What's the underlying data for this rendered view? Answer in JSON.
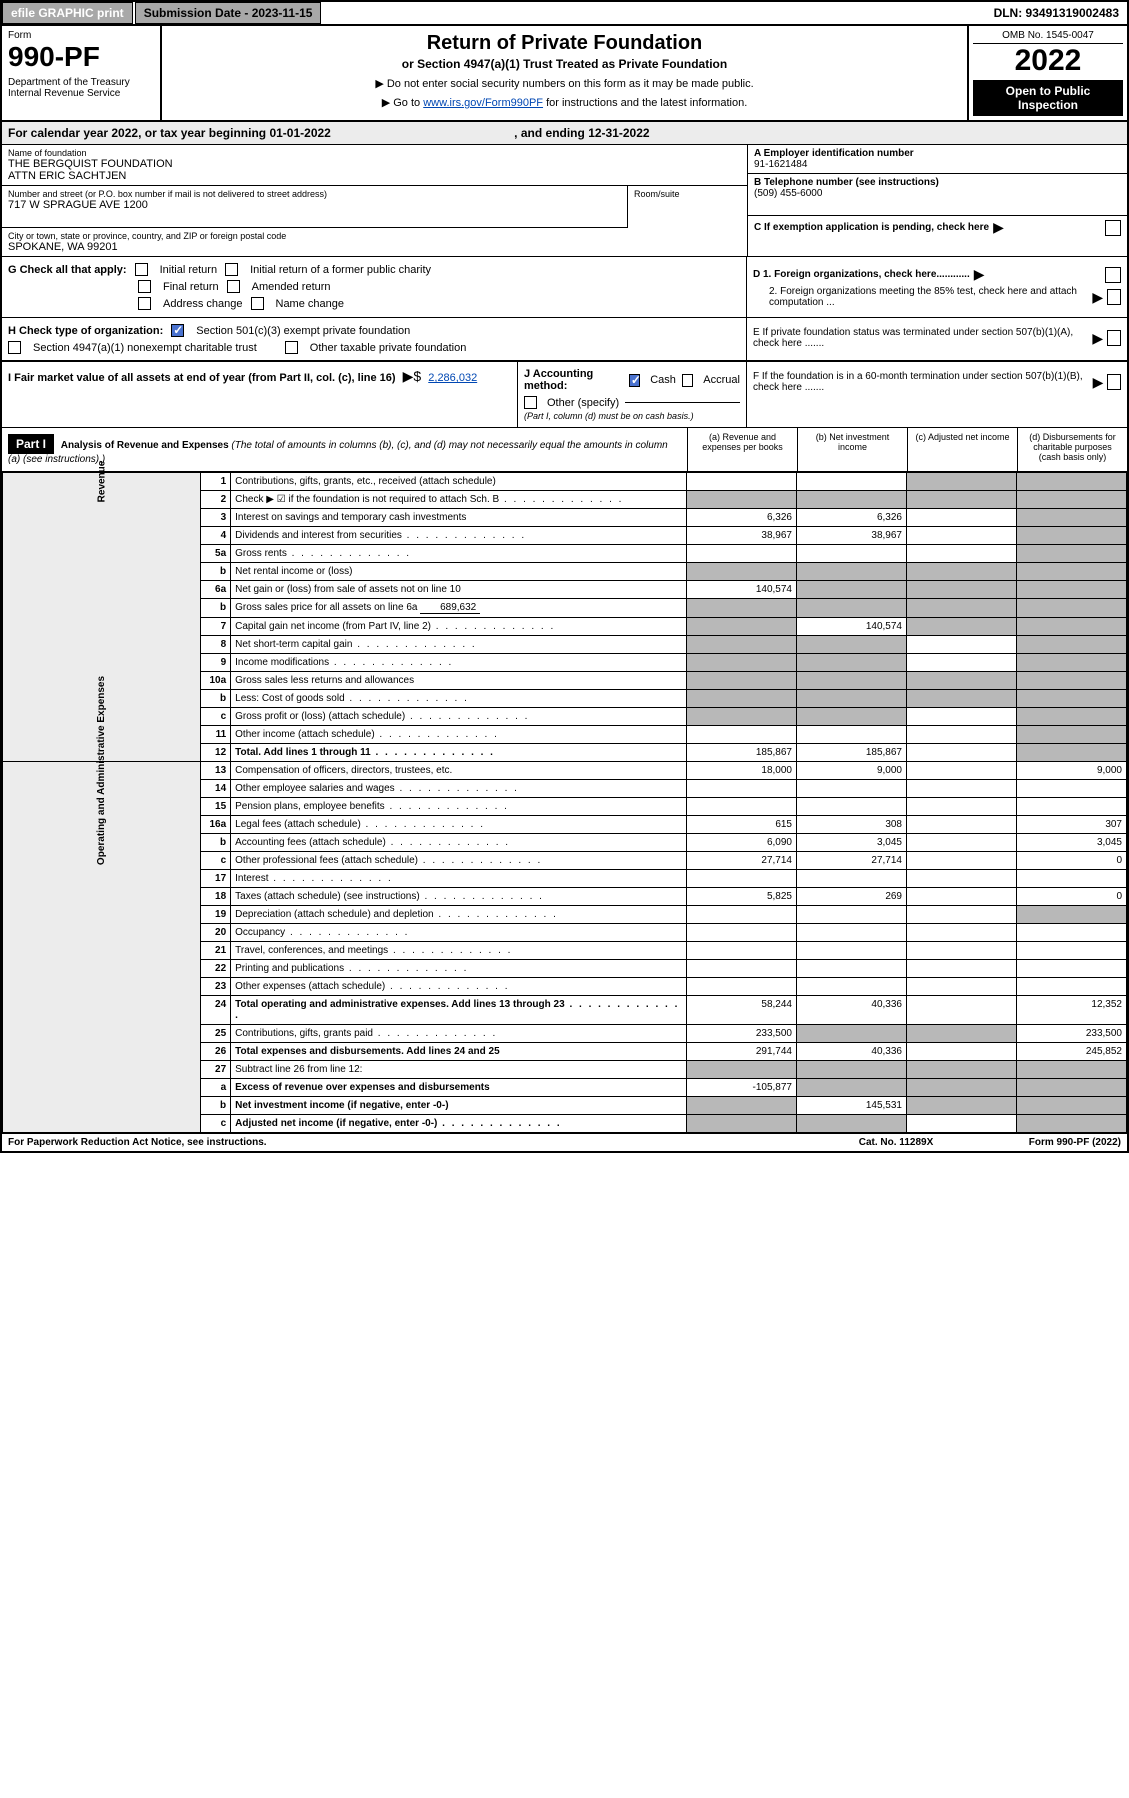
{
  "top_bar": {
    "efile": "efile GRAPHIC print",
    "submission_label": "Submission Date - 2023-11-15",
    "dln": "DLN: 93491319002483"
  },
  "header": {
    "form_label": "Form",
    "form_number": "990-PF",
    "dept": "Department of the Treasury\nInternal Revenue Service",
    "main_title": "Return of Private Foundation",
    "sub_title": "or Section 4947(a)(1) Trust Treated as Private Foundation",
    "instr1": "▶ Do not enter social security numbers on this form as it may be made public.",
    "instr2_prefix": "▶ Go to ",
    "instr2_link": "www.irs.gov/Form990PF",
    "instr2_suffix": " for instructions and the latest information.",
    "omb": "OMB No. 1545-0047",
    "year": "2022",
    "open_public": "Open to Public Inspection"
  },
  "calendar": {
    "text_prefix": "For calendar year 2022, or tax year beginning ",
    "begin": "01-01-2022",
    "text_mid": " , and ending ",
    "end": "12-31-2022"
  },
  "foundation": {
    "name_label": "Name of foundation",
    "name": "THE BERGQUIST FOUNDATION\nATTN ERIC SACHTJEN",
    "addr_label": "Number and street (or P.O. box number if mail is not delivered to street address)",
    "addr": "717 W SPRAGUE AVE 1200",
    "room_label": "Room/suite",
    "city_label": "City or town, state or province, country, and ZIP or foreign postal code",
    "city": "SPOKANE, WA  99201",
    "ein_label": "A Employer identification number",
    "ein": "91-1621484",
    "phone_label": "B Telephone number (see instructions)",
    "phone": "(509) 455-6000",
    "c_label": "C If exemption application is pending, check here",
    "d1_label": "D 1. Foreign organizations, check here............",
    "d2_label": "2. Foreign organizations meeting the 85% test, check here and attach computation ...",
    "e_label": "E  If private foundation status was terminated under section 507(b)(1)(A), check here .......",
    "f_label": "F  If the foundation is in a 60-month termination under section 507(b)(1)(B), check here ......."
  },
  "g_section": {
    "label": "G Check all that apply:",
    "opts": [
      "Initial return",
      "Initial return of a former public charity",
      "Final return",
      "Amended return",
      "Address change",
      "Name change"
    ]
  },
  "h_section": {
    "label": "H Check type of organization:",
    "opt1": "Section 501(c)(3) exempt private foundation",
    "opt2": "Section 4947(a)(1) nonexempt charitable trust",
    "opt3": "Other taxable private foundation"
  },
  "i_section": {
    "label": "I Fair market value of all assets at end of year (from Part II, col. (c), line 16)",
    "value": "2,286,032"
  },
  "j_section": {
    "label": "J Accounting method:",
    "opts": [
      "Cash",
      "Accrual",
      "Other (specify)"
    ],
    "note": "(Part I, column (d) must be on cash basis.)"
  },
  "part1": {
    "header": "Part I",
    "title": "Analysis of Revenue and Expenses",
    "note": "(The total of amounts in columns (b), (c), and (d) may not necessarily equal the amounts in column (a) (see instructions).)",
    "col_a": "(a) Revenue and expenses per books",
    "col_b": "(b) Net investment income",
    "col_c": "(c) Adjusted net income",
    "col_d": "(d) Disbursements for charitable purposes (cash basis only)"
  },
  "side_labels": {
    "revenue": "Revenue",
    "expenses": "Operating and Administrative Expenses"
  },
  "lines": [
    {
      "n": "1",
      "label": "Contributions, gifts, grants, etc., received (attach schedule)",
      "a": "",
      "b": "",
      "c": "sh",
      "d": "sh"
    },
    {
      "n": "2",
      "label": "Check ▶ ☑ if the foundation is not required to attach Sch. B",
      "a": "sh",
      "b": "sh",
      "c": "sh",
      "d": "sh",
      "dots": true
    },
    {
      "n": "3",
      "label": "Interest on savings and temporary cash investments",
      "a": "6,326",
      "b": "6,326",
      "c": "",
      "d": "sh"
    },
    {
      "n": "4",
      "label": "Dividends and interest from securities",
      "a": "38,967",
      "b": "38,967",
      "c": "",
      "d": "sh",
      "dots": true
    },
    {
      "n": "5a",
      "label": "Gross rents",
      "a": "",
      "b": "",
      "c": "",
      "d": "sh",
      "dots": true
    },
    {
      "n": "b",
      "label": "Net rental income or (loss)",
      "a": "sh",
      "b": "sh",
      "c": "sh",
      "d": "sh",
      "inset": true
    },
    {
      "n": "6a",
      "label": "Net gain or (loss) from sale of assets not on line 10",
      "a": "140,574",
      "b": "sh",
      "c": "sh",
      "d": "sh"
    },
    {
      "n": "b",
      "label": "Gross sales price for all assets on line 6a",
      "a": "sh",
      "b": "sh",
      "c": "sh",
      "d": "sh",
      "inset": true,
      "inline_val": "689,632"
    },
    {
      "n": "7",
      "label": "Capital gain net income (from Part IV, line 2)",
      "a": "sh",
      "b": "140,574",
      "c": "sh",
      "d": "sh",
      "dots": true
    },
    {
      "n": "8",
      "label": "Net short-term capital gain",
      "a": "sh",
      "b": "sh",
      "c": "",
      "d": "sh",
      "dots": true
    },
    {
      "n": "9",
      "label": "Income modifications",
      "a": "sh",
      "b": "sh",
      "c": "",
      "d": "sh",
      "dots": true
    },
    {
      "n": "10a",
      "label": "Gross sales less returns and allowances",
      "a": "sh",
      "b": "sh",
      "c": "sh",
      "d": "sh",
      "inset": true
    },
    {
      "n": "b",
      "label": "Less: Cost of goods sold",
      "a": "sh",
      "b": "sh",
      "c": "sh",
      "d": "sh",
      "inset": true,
      "dots": true
    },
    {
      "n": "c",
      "label": "Gross profit or (loss) (attach schedule)",
      "a": "sh",
      "b": "sh",
      "c": "",
      "d": "sh",
      "dots": true
    },
    {
      "n": "11",
      "label": "Other income (attach schedule)",
      "a": "",
      "b": "",
      "c": "",
      "d": "sh",
      "dots": true
    },
    {
      "n": "12",
      "label": "Total. Add lines 1 through 11",
      "a": "185,867",
      "b": "185,867",
      "c": "",
      "d": "sh",
      "bold": true,
      "dots": true
    },
    {
      "n": "13",
      "label": "Compensation of officers, directors, trustees, etc.",
      "a": "18,000",
      "b": "9,000",
      "c": "",
      "d": "9,000"
    },
    {
      "n": "14",
      "label": "Other employee salaries and wages",
      "a": "",
      "b": "",
      "c": "",
      "d": "",
      "dots": true
    },
    {
      "n": "15",
      "label": "Pension plans, employee benefits",
      "a": "",
      "b": "",
      "c": "",
      "d": "",
      "dots": true
    },
    {
      "n": "16a",
      "label": "Legal fees (attach schedule)",
      "a": "615",
      "b": "308",
      "c": "",
      "d": "307",
      "dots": true
    },
    {
      "n": "b",
      "label": "Accounting fees (attach schedule)",
      "a": "6,090",
      "b": "3,045",
      "c": "",
      "d": "3,045",
      "dots": true
    },
    {
      "n": "c",
      "label": "Other professional fees (attach schedule)",
      "a": "27,714",
      "b": "27,714",
      "c": "",
      "d": "0",
      "dots": true
    },
    {
      "n": "17",
      "label": "Interest",
      "a": "",
      "b": "",
      "c": "",
      "d": "",
      "dots": true
    },
    {
      "n": "18",
      "label": "Taxes (attach schedule) (see instructions)",
      "a": "5,825",
      "b": "269",
      "c": "",
      "d": "0",
      "dots": true
    },
    {
      "n": "19",
      "label": "Depreciation (attach schedule) and depletion",
      "a": "",
      "b": "",
      "c": "",
      "d": "sh",
      "dots": true
    },
    {
      "n": "20",
      "label": "Occupancy",
      "a": "",
      "b": "",
      "c": "",
      "d": "",
      "dots": true
    },
    {
      "n": "21",
      "label": "Travel, conferences, and meetings",
      "a": "",
      "b": "",
      "c": "",
      "d": "",
      "dots": true
    },
    {
      "n": "22",
      "label": "Printing and publications",
      "a": "",
      "b": "",
      "c": "",
      "d": "",
      "dots": true
    },
    {
      "n": "23",
      "label": "Other expenses (attach schedule)",
      "a": "",
      "b": "",
      "c": "",
      "d": "",
      "dots": true
    },
    {
      "n": "24",
      "label": "Total operating and administrative expenses. Add lines 13 through 23",
      "a": "58,244",
      "b": "40,336",
      "c": "",
      "d": "12,352",
      "bold": true,
      "dots": true
    },
    {
      "n": "25",
      "label": "Contributions, gifts, grants paid",
      "a": "233,500",
      "b": "sh",
      "c": "sh",
      "d": "233,500",
      "dots": true
    },
    {
      "n": "26",
      "label": "Total expenses and disbursements. Add lines 24 and 25",
      "a": "291,744",
      "b": "40,336",
      "c": "",
      "d": "245,852",
      "bold": true
    },
    {
      "n": "27",
      "label": "Subtract line 26 from line 12:",
      "a": "sh",
      "b": "sh",
      "c": "sh",
      "d": "sh"
    },
    {
      "n": "a",
      "label": "Excess of revenue over expenses and disbursements",
      "a": "-105,877",
      "b": "sh",
      "c": "sh",
      "d": "sh",
      "bold": true
    },
    {
      "n": "b",
      "label": "Net investment income (if negative, enter -0-)",
      "a": "sh",
      "b": "145,531",
      "c": "sh",
      "d": "sh",
      "bold": true
    },
    {
      "n": "c",
      "label": "Adjusted net income (if negative, enter -0-)",
      "a": "sh",
      "b": "sh",
      "c": "",
      "d": "sh",
      "bold": true,
      "dots": true
    }
  ],
  "footer": {
    "left": "For Paperwork Reduction Act Notice, see instructions.",
    "mid": "Cat. No. 11289X",
    "right": "Form 990-PF (2022)"
  }
}
